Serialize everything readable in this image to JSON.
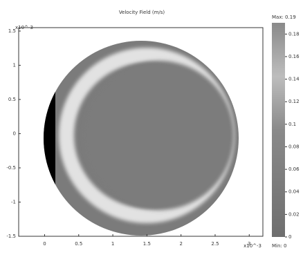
{
  "chart_data": {
    "type": "field",
    "title": "Velocity Field (m/s)",
    "x_exponent": "x10^-3",
    "y_exponent": "x10^-3",
    "xlim": [
      -0.38,
      3.2
    ],
    "xticks": [
      0,
      0.5,
      1,
      1.5,
      2,
      2.5,
      3
    ],
    "ylim": [
      -1.5,
      1.55
    ],
    "yticks": [
      -1.5,
      -1,
      -0.5,
      0,
      0.5,
      1,
      1.5
    ],
    "colorbar": {
      "max_label": "Max: 0.19",
      "min_label": "Min: 0",
      "lim": [
        0,
        0.19
      ],
      "ticks": [
        0,
        0.02,
        0.04,
        0.06,
        0.08,
        0.1,
        0.12,
        0.14,
        0.16,
        0.18
      ]
    }
  }
}
